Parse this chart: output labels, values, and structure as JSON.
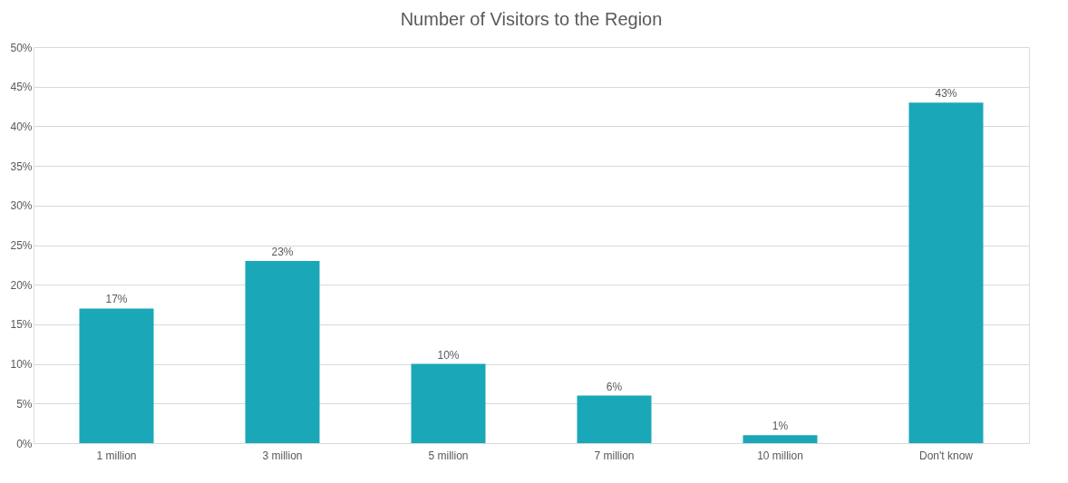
{
  "chart_data": {
    "type": "bar",
    "title": "Number of Visitors to the Region",
    "categories": [
      "1 million",
      "3 million",
      "5 million",
      "7 million",
      "10 million",
      "Don't know"
    ],
    "values": [
      17,
      23,
      10,
      6,
      1,
      43
    ],
    "value_labels": [
      "17%",
      "23%",
      "10%",
      "6%",
      "1%",
      "43%"
    ],
    "color": "#1aa7b8",
    "ylim": [
      0,
      50
    ],
    "yticks": [
      {
        "value": 0,
        "label": "0%"
      },
      {
        "value": 5,
        "label": "5%"
      },
      {
        "value": 10,
        "label": "10%"
      },
      {
        "value": 15,
        "label": "15%"
      },
      {
        "value": 20,
        "label": "20%"
      },
      {
        "value": 25,
        "label": "25%"
      },
      {
        "value": 30,
        "label": "30%"
      },
      {
        "value": 35,
        "label": "35%"
      },
      {
        "value": 40,
        "label": "40%"
      },
      {
        "value": 45,
        "label": "45%"
      },
      {
        "value": 50,
        "label": "50%"
      }
    ],
    "grid": "y"
  }
}
